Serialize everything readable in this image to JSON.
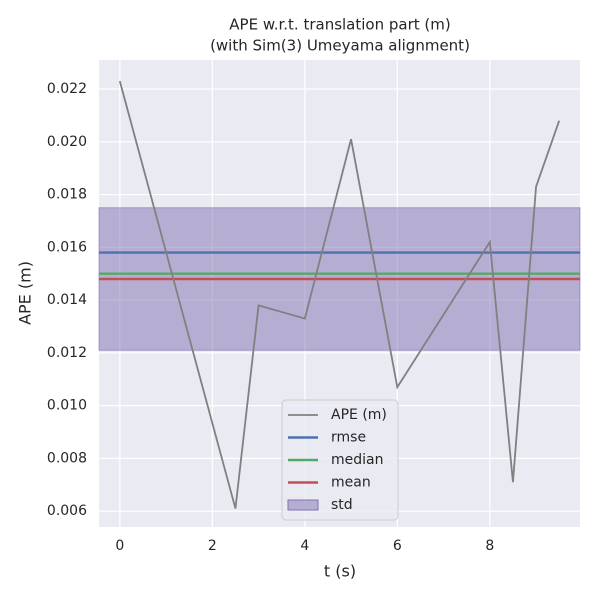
{
  "chart_data": {
    "type": "line",
    "title": "APE w.r.t. translation part (m)",
    "subtitle": "(with Sim(3) Umeyama alignment)",
    "x_label": "t (s)",
    "y_label": "APE (m)",
    "series": [
      {
        "name": "APE (m)",
        "color": "#808080",
        "x": [
          0,
          2.5,
          3,
          4,
          5,
          6,
          8,
          8.5,
          9,
          9.5
        ],
        "values": [
          0.0223,
          0.0061,
          0.0138,
          0.0133,
          0.0201,
          0.0107,
          0.0162,
          0.0071,
          0.0183,
          0.0208
        ]
      }
    ],
    "reference_lines": [
      {
        "name": "rmse",
        "color": "#4c72b0",
        "value": 0.0158
      },
      {
        "name": "median",
        "color": "#55a868",
        "value": 0.015
      },
      {
        "name": "mean",
        "color": "#c44e52",
        "value": 0.0148
      }
    ],
    "band": {
      "name": "std",
      "color": "#8172b2",
      "value": 0.0027
    },
    "xlim": [
      -0.45,
      9.95
    ],
    "xticks": [
      0,
      2,
      4,
      6,
      8
    ],
    "ylim": [
      0.0054,
      0.0231
    ],
    "yticks": [
      0.006,
      0.008,
      {
        "value": 0.01,
        "label": "0.010"
      },
      0.012,
      0.014,
      0.016,
      0.018,
      {
        "value": 0.02,
        "label": "0.020"
      },
      0.022
    ],
    "grid": true
  }
}
